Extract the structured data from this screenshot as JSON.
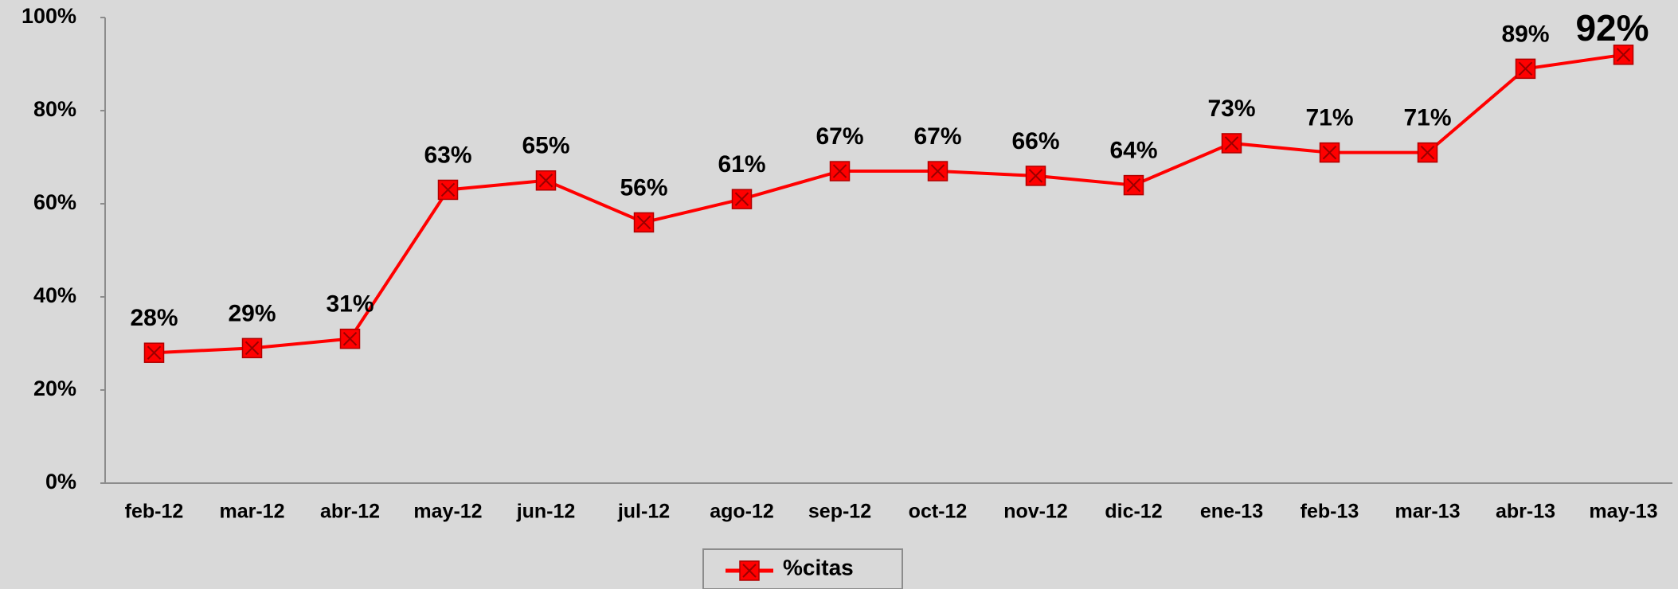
{
  "chart_data": {
    "type": "line",
    "categories": [
      "feb-12",
      "mar-12",
      "abr-12",
      "may-12",
      "jun-12",
      "jul-12",
      "ago-12",
      "sep-12",
      "oct-12",
      "nov-12",
      "dic-12",
      "ene-13",
      "feb-13",
      "mar-13",
      "abr-13",
      "may-13"
    ],
    "series": [
      {
        "name": "%citas",
        "color": "#ff0000",
        "values": [
          28,
          29,
          31,
          63,
          65,
          56,
          61,
          67,
          67,
          66,
          64,
          73,
          71,
          71,
          89,
          92
        ],
        "value_labels": [
          "28%",
          "29%",
          "31%",
          "63%",
          "65%",
          "56%",
          "61%",
          "67%",
          "67%",
          "66%",
          "64%",
          "73%",
          "71%",
          "71%",
          "89%",
          "92%"
        ]
      }
    ],
    "ylim": [
      0,
      100
    ],
    "yticks": [
      {
        "value": 0,
        "label": "0%"
      },
      {
        "value": 20,
        "label": "20%"
      },
      {
        "value": 40,
        "label": "40%"
      },
      {
        "value": 60,
        "label": "60%"
      },
      {
        "value": 80,
        "label": "80%"
      },
      {
        "value": 100,
        "label": "100%"
      }
    ],
    "grid": false,
    "legend": "bottom"
  }
}
